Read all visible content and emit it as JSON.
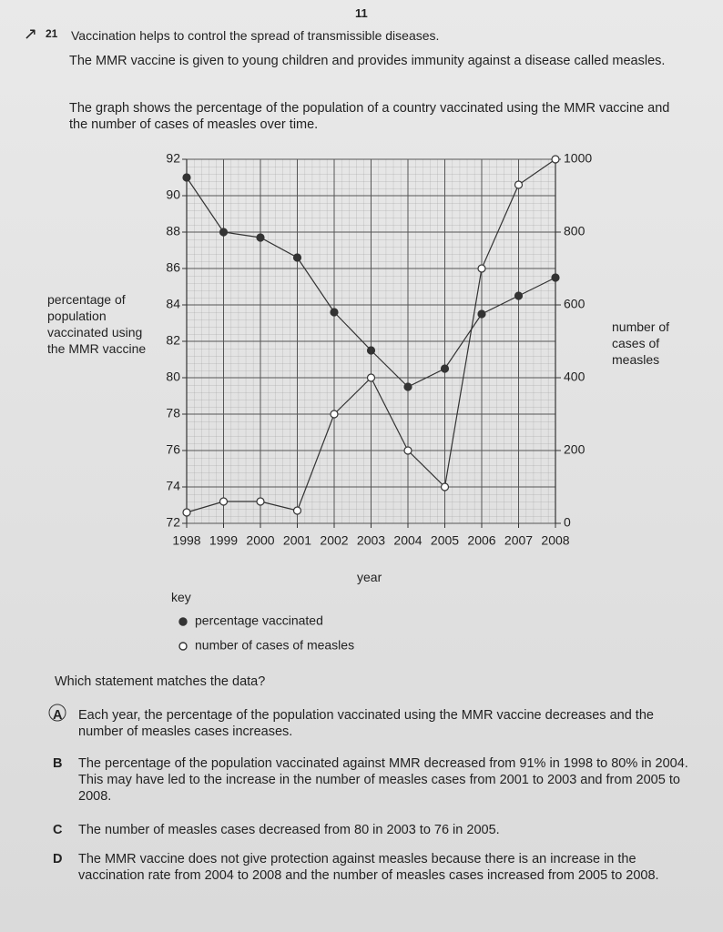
{
  "page_number": "11",
  "question_number": "21",
  "intro": "Vaccination helps to control the spread of transmissible diseases.",
  "paragraph_1": "The MMR vaccine is given to young children and provides immunity against a disease called measles.",
  "paragraph_2": "The graph shows the percentage of the population of a country vaccinated using the MMR vaccine and the number of cases of measles over time.",
  "chart_data": {
    "type": "line",
    "ylabel": "percentage of population vaccinated using the MMR vaccine",
    "y2label": "number of cases of measles",
    "xlabel": "year",
    "x": [
      1998,
      1999,
      2000,
      2001,
      2002,
      2003,
      2004,
      2005,
      2006,
      2007,
      2008
    ],
    "xlim": [
      1998,
      2008
    ],
    "xticks": [
      1998,
      1999,
      2000,
      2001,
      2002,
      2003,
      2004,
      2005,
      2006,
      2007,
      2008
    ],
    "ylim": [
      72,
      92
    ],
    "yticks": [
      72,
      74,
      76,
      78,
      80,
      82,
      84,
      86,
      88,
      90,
      92
    ],
    "y2lim": [
      0,
      1000
    ],
    "y2ticks": [
      0,
      200,
      400,
      600,
      800,
      1000
    ],
    "grid": true,
    "legend_title": "key",
    "series": [
      {
        "name": "percentage vaccinated",
        "color": "#333333",
        "marker": "filled",
        "values": [
          91,
          88,
          87.7,
          86.6,
          83.6,
          81.5,
          79.5,
          80.5,
          83.5,
          84.5,
          85.5
        ]
      },
      {
        "name": "number of cases of measles",
        "color": "#333333",
        "marker": "open",
        "axis": "y2",
        "values": [
          30,
          60,
          60,
          35,
          300,
          400,
          200,
          100,
          700,
          930,
          1000
        ]
      }
    ]
  },
  "question": "Which statement matches the data?",
  "options": [
    {
      "letter": "A",
      "text": "Each year, the percentage of the population vaccinated using the MMR vaccine decreases and the number of measles cases increases."
    },
    {
      "letter": "B",
      "text": "The percentage of the population vaccinated against MMR decreased from 91% in 1998 to 80% in 2004. This may have led to the increase in the number of measles cases from 2001 to 2003 and from 2005 to 2008."
    },
    {
      "letter": "C",
      "text": "The number of measles cases decreased from 80 in 2003 to 76 in 2005."
    },
    {
      "letter": "D",
      "text": "The MMR vaccine does not give protection against measles because there is an increase in the vaccination rate from 2004 to 2008 and the number of measles cases increased from 2005 to 2008."
    }
  ]
}
